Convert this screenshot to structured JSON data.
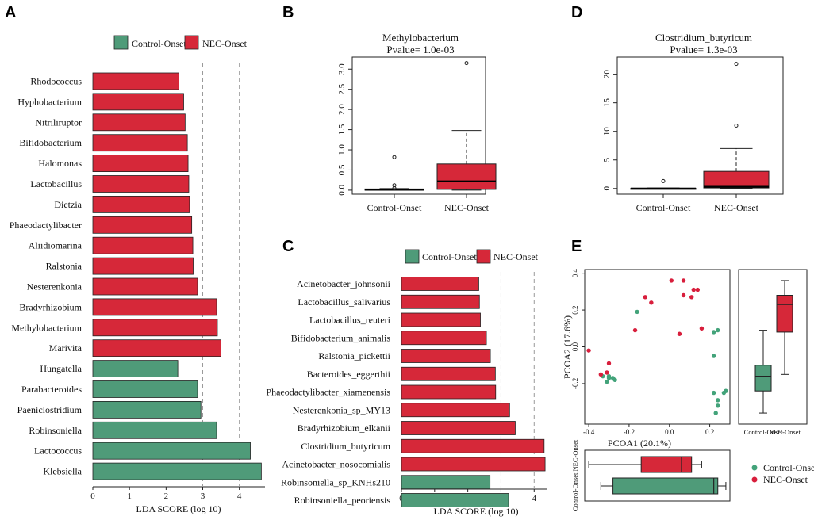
{
  "panel_labels": {
    "a": "A",
    "b": "B",
    "c": "C",
    "d": "D",
    "e": "E"
  },
  "colors": {
    "control": "#4f9b79",
    "nec": "#d62839",
    "control_point": "#43a37a",
    "nec_point": "#d81e3c"
  },
  "legend": {
    "control": "Control-Onset",
    "nec": "NEC-Onset"
  },
  "chart_data": [
    {
      "id": "A",
      "type": "bar",
      "orientation": "horizontal",
      "xlabel": "LDA SCORE (log 10)",
      "xlim": [
        0,
        4.7
      ],
      "xticks": [
        0,
        1,
        2,
        3,
        4
      ],
      "dashed_lines": [
        3,
        4
      ],
      "categories": [
        "Rhodococcus",
        "Hyphobacterium",
        "Nitriliruptor",
        "Bifidobacterium",
        "Halomonas",
        "Lactobacillus",
        "Dietzia",
        "Phaeodactylibacter",
        "Aliidiomarina",
        "Ralstonia",
        "Nesterenkonia",
        "Bradyrhizobium",
        "Methylobacterium",
        "Marivita",
        "Hungatella",
        "Parabacteroides",
        "Paeniclostridium",
        "Robinsoniella",
        "Lactococcus",
        "Klebsiella"
      ],
      "values": [
        2.35,
        2.48,
        2.52,
        2.58,
        2.6,
        2.62,
        2.64,
        2.7,
        2.73,
        2.74,
        2.86,
        3.38,
        3.4,
        3.5,
        2.32,
        2.86,
        2.95,
        3.38,
        4.3,
        4.6
      ],
      "groups": [
        "NEC-Onset",
        "NEC-Onset",
        "NEC-Onset",
        "NEC-Onset",
        "NEC-Onset",
        "NEC-Onset",
        "NEC-Onset",
        "NEC-Onset",
        "NEC-Onset",
        "NEC-Onset",
        "NEC-Onset",
        "NEC-Onset",
        "NEC-Onset",
        "NEC-Onset",
        "Control-Onset",
        "Control-Onset",
        "Control-Onset",
        "Control-Onset",
        "Control-Onset",
        "Control-Onset"
      ]
    },
    {
      "id": "B",
      "type": "boxplot",
      "title": "Methylobacterium",
      "subtitle": "Pvalue= 1.0e-03",
      "ylim": [
        -0.1,
        3.3
      ],
      "yticks": [
        0.0,
        0.5,
        1.0,
        1.5,
        2.0,
        2.5,
        3.0
      ],
      "ytick_labels": [
        "0.0",
        "0.5",
        "1.0",
        "1.5",
        "2.0",
        "2.5",
        "3.0"
      ],
      "categories": [
        "Control-Onset",
        "NEC-Onset"
      ],
      "boxes": [
        {
          "min": 0,
          "q1": 0,
          "median": 0.01,
          "q3": 0.03,
          "max": 0.04,
          "outliers": [
            0.82,
            0.12,
            0.05
          ]
        },
        {
          "min": 0,
          "q1": 0.02,
          "median": 0.22,
          "q3": 0.65,
          "max": 1.48,
          "outliers": [
            3.15
          ]
        }
      ]
    },
    {
      "id": "C",
      "type": "bar",
      "orientation": "horizontal",
      "xlabel": "LDA SCORE (log 10)",
      "xlim": [
        0,
        4.4
      ],
      "xticks": [
        0,
        1,
        2,
        3,
        4
      ],
      "dashed_lines": [
        3,
        4
      ],
      "categories": [
        "Acinetobacter_johnsonii",
        "Lactobacillus_salivarius",
        "Lactobacillus_reuteri",
        "Bifidobacterium_animalis",
        "Ralstonia_pickettii",
        "Bacteroides_eggerthii",
        "Phaeodactylibacter_xiamenensis",
        "Nesterenkonia_sp_MY13",
        "Bradyrhizobium_elkanii",
        "Clostridium_butyricum",
        "Acinetobacter_nosocomialis",
        "Robinsoniella_sp_KNHs210",
        "Robinsoniella_peoriensis"
      ],
      "values": [
        2.33,
        2.35,
        2.38,
        2.56,
        2.68,
        2.83,
        2.84,
        3.26,
        3.43,
        4.3,
        4.33,
        2.67,
        3.23
      ],
      "groups": [
        "NEC-Onset",
        "NEC-Onset",
        "NEC-Onset",
        "NEC-Onset",
        "NEC-Onset",
        "NEC-Onset",
        "NEC-Onset",
        "NEC-Onset",
        "NEC-Onset",
        "NEC-Onset",
        "NEC-Onset",
        "Control-Onset",
        "Control-Onset"
      ]
    },
    {
      "id": "D",
      "type": "boxplot",
      "title": "Clostridium_butyricum",
      "subtitle": "Pvalue= 1.3e-03",
      "ylim": [
        -1,
        23
      ],
      "yticks": [
        0,
        5,
        10,
        15,
        20
      ],
      "ytick_labels": [
        "0",
        "5",
        "10",
        "15",
        "20"
      ],
      "categories": [
        "Control-Onset",
        "NEC-Onset"
      ],
      "boxes": [
        {
          "min": 0,
          "q1": 0,
          "median": 0,
          "q3": 0.05,
          "max": 0.1,
          "outliers": [
            1.3
          ]
        },
        {
          "min": 0,
          "q1": 0.1,
          "median": 0.3,
          "q3": 3.0,
          "max": 7.0,
          "outliers": [
            11.0,
            21.8
          ]
        }
      ]
    },
    {
      "id": "E",
      "type": "scatter",
      "xlabel": "PCOA1 (20.1%)",
      "ylabel": "PCOA2 (17.6%)",
      "xlim": [
        -0.42,
        0.3
      ],
      "ylim": [
        -0.42,
        0.42
      ],
      "xticks": [
        -0.4,
        -0.2,
        0.0,
        0.2
      ],
      "xtick_labels": [
        "-0.4",
        "-0.2",
        "0.0",
        "0.2"
      ],
      "yticks": [
        -0.2,
        0.0,
        0.2,
        0.4
      ],
      "ytick_labels": [
        "-0.2",
        "0.0",
        "0.2",
        "0.4"
      ],
      "series": [
        {
          "name": "Control-Onset",
          "points": [
            [
              -0.31,
              -0.19
            ],
            [
              -0.28,
              -0.17
            ],
            [
              -0.3,
              -0.17
            ],
            [
              -0.27,
              -0.18
            ],
            [
              -0.33,
              -0.16
            ],
            [
              -0.3,
              -0.16
            ],
            [
              -0.16,
              0.19
            ],
            [
              0.24,
              0.09
            ],
            [
              0.22,
              0.08
            ],
            [
              0.22,
              -0.05
            ],
            [
              0.28,
              -0.24
            ],
            [
              0.27,
              -0.25
            ],
            [
              0.22,
              -0.25
            ],
            [
              0.24,
              -0.29
            ],
            [
              0.24,
              -0.32
            ],
            [
              0.23,
              -0.36
            ]
          ]
        },
        {
          "name": "NEC-Onset",
          "points": [
            [
              -0.4,
              -0.02
            ],
            [
              -0.3,
              -0.09
            ],
            [
              -0.31,
              -0.14
            ],
            [
              -0.34,
              -0.15
            ],
            [
              -0.12,
              0.27
            ],
            [
              -0.09,
              0.24
            ],
            [
              -0.17,
              0.09
            ],
            [
              0.01,
              0.36
            ],
            [
              0.07,
              0.36
            ],
            [
              0.07,
              0.28
            ],
            [
              0.11,
              0.27
            ],
            [
              0.12,
              0.31
            ],
            [
              0.14,
              0.31
            ],
            [
              0.16,
              0.1
            ],
            [
              0.05,
              0.07
            ]
          ]
        }
      ],
      "right_box": {
        "categories": [
          "Control-Onset",
          "NEC-Onset"
        ],
        "boxes": [
          {
            "min": -0.36,
            "q1": -0.24,
            "median": -0.16,
            "q3": -0.1,
            "max": 0.09
          },
          {
            "min": -0.15,
            "q1": 0.08,
            "median": 0.23,
            "q3": 0.28,
            "max": 0.36
          }
        ]
      },
      "bottom_box": {
        "categories": [
          "Control-Onset",
          "NEC-Onset"
        ],
        "boxes": [
          {
            "min": -0.34,
            "q1": -0.28,
            "median": 0.22,
            "q3": 0.24,
            "max": 0.28
          },
          {
            "min": -0.4,
            "q1": -0.14,
            "median": 0.06,
            "q3": 0.11,
            "max": 0.16
          }
        ]
      }
    }
  ]
}
